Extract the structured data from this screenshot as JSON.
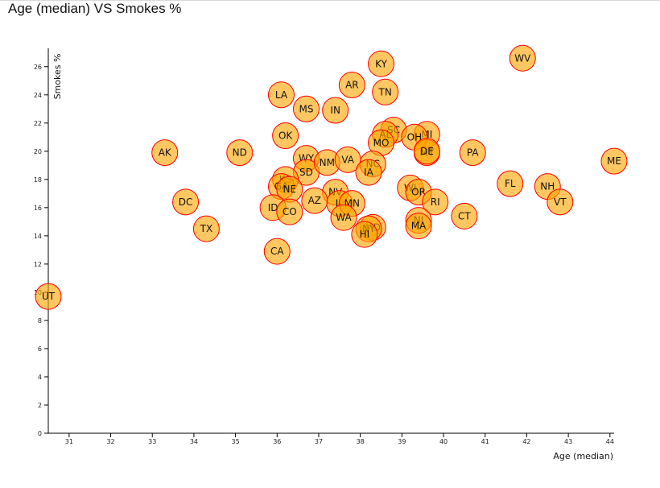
{
  "page": {
    "title": "Age (median) VS Smokes %"
  },
  "chart_data": {
    "type": "scatter",
    "xlabel": "Age (median)",
    "ylabel": "Smokes %",
    "xlim": [
      30.5,
      44.1
    ],
    "ylim": [
      0,
      27.3
    ],
    "x_ticks": [
      31,
      32,
      33,
      34,
      35,
      36,
      37,
      38,
      39,
      40,
      41,
      42,
      43,
      44
    ],
    "y_ticks": [
      0,
      2,
      4,
      6,
      8,
      10,
      12,
      14,
      16,
      18,
      20,
      22,
      24,
      26
    ],
    "grid": false,
    "colors": {
      "marker_fill": "#ffa500",
      "marker_stroke": "#ff0000"
    },
    "points": [
      {
        "label": "WV",
        "x": 41.9,
        "y": 26.6
      },
      {
        "label": "KY",
        "x": 38.5,
        "y": 26.2
      },
      {
        "label": "AR",
        "x": 37.8,
        "y": 24.7
      },
      {
        "label": "TN",
        "x": 38.6,
        "y": 24.2
      },
      {
        "label": "LA",
        "x": 36.1,
        "y": 24.0
      },
      {
        "label": "MS",
        "x": 36.7,
        "y": 23.0
      },
      {
        "label": "IN",
        "x": 37.4,
        "y": 22.9
      },
      {
        "label": "OK",
        "x": 36.2,
        "y": 21.1
      },
      {
        "label": "SC",
        "x": 38.8,
        "y": 21.5
      },
      {
        "label": "AL",
        "x": 38.6,
        "y": 21.2
      },
      {
        "label": "MI",
        "x": 39.6,
        "y": 21.2
      },
      {
        "label": "OH",
        "x": 39.3,
        "y": 21.0
      },
      {
        "label": "MO",
        "x": 38.5,
        "y": 20.6
      },
      {
        "label": "ME",
        "x": 44.1,
        "y": 19.3
      },
      {
        "label": "MT",
        "x": 39.6,
        "y": 19.9
      },
      {
        "label": "DE",
        "x": 39.6,
        "y": 20.0
      },
      {
        "label": "PA",
        "x": 40.7,
        "y": 19.9
      },
      {
        "label": "AK",
        "x": 33.3,
        "y": 19.9
      },
      {
        "label": "ND",
        "x": 35.1,
        "y": 19.9
      },
      {
        "label": "WY",
        "x": 36.7,
        "y": 19.5
      },
      {
        "label": "SD",
        "x": 36.7,
        "y": 18.5
      },
      {
        "label": "NM",
        "x": 37.2,
        "y": 19.2
      },
      {
        "label": "VA",
        "x": 37.7,
        "y": 19.4
      },
      {
        "label": "NC",
        "x": 38.3,
        "y": 19.1
      },
      {
        "label": "IA",
        "x": 38.2,
        "y": 18.5
      },
      {
        "label": "KS",
        "x": 36.2,
        "y": 18.0
      },
      {
        "label": "GA",
        "x": 36.1,
        "y": 17.5
      },
      {
        "label": "NE",
        "x": 36.3,
        "y": 17.3
      },
      {
        "label": "FL",
        "x": 41.6,
        "y": 17.7
      },
      {
        "label": "NH",
        "x": 42.5,
        "y": 17.5
      },
      {
        "label": "VT",
        "x": 42.8,
        "y": 16.4
      },
      {
        "label": "WI",
        "x": 39.2,
        "y": 17.4
      },
      {
        "label": "OR",
        "x": 39.4,
        "y": 17.1
      },
      {
        "label": "NV",
        "x": 37.4,
        "y": 17.1
      },
      {
        "label": "IL",
        "x": 37.5,
        "y": 16.3
      },
      {
        "label": "MN",
        "x": 37.8,
        "y": 16.3
      },
      {
        "label": "AZ",
        "x": 36.9,
        "y": 16.5
      },
      {
        "label": "RI",
        "x": 39.8,
        "y": 16.4
      },
      {
        "label": "DC",
        "x": 33.8,
        "y": 16.4
      },
      {
        "label": "ID",
        "x": 35.9,
        "y": 16.0
      },
      {
        "label": "CO",
        "x": 36.3,
        "y": 15.7
      },
      {
        "label": "CT",
        "x": 40.5,
        "y": 15.4
      },
      {
        "label": "WA",
        "x": 37.6,
        "y": 15.3
      },
      {
        "label": "NJ",
        "x": 39.4,
        "y": 15.1
      },
      {
        "label": "MA",
        "x": 39.4,
        "y": 14.7
      },
      {
        "label": "MD",
        "x": 38.3,
        "y": 14.6
      },
      {
        "label": "NY",
        "x": 38.2,
        "y": 14.5
      },
      {
        "label": "HI",
        "x": 38.1,
        "y": 14.1
      },
      {
        "label": "TX",
        "x": 34.3,
        "y": 14.5
      },
      {
        "label": "CA",
        "x": 36.0,
        "y": 12.9
      },
      {
        "label": "UT",
        "x": 30.5,
        "y": 9.7
      }
    ]
  }
}
